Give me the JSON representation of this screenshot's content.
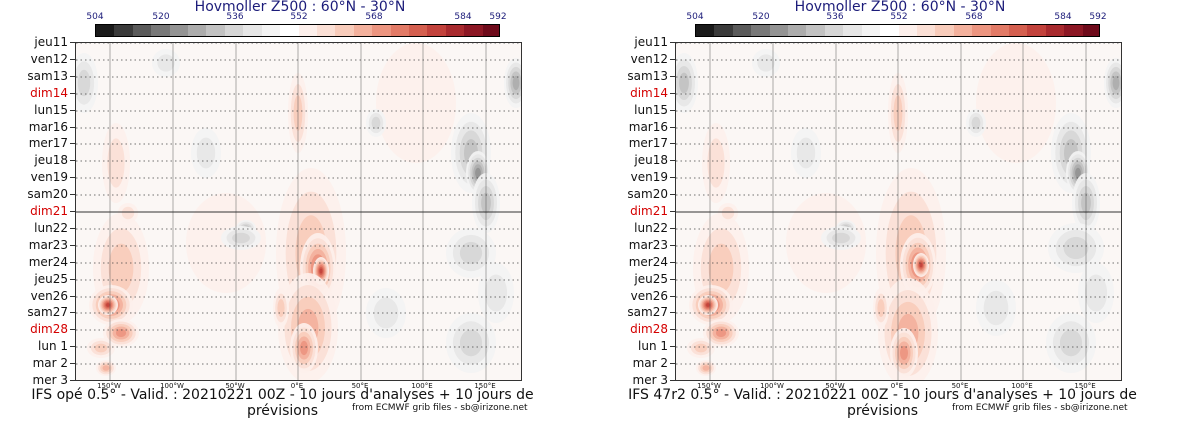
{
  "chart_data": [
    {
      "type": "heatmap",
      "title": "Hovmoller Z500 : 60°N - 30°N",
      "model": "IFS opé 0.5°",
      "footer": "IFS opé 0.5° - Valid. : 20210221 00Z - 10 jours d'analyses + 10 jours de prévisions",
      "credit": "from ECMWF grib files - sb@irizone.net",
      "colorbar_ticks": [
        "504",
        "520",
        "536",
        "552",
        "568",
        "584",
        "592"
      ],
      "x_ticks": [
        "150°W",
        "100°W",
        "50°W",
        "0°E",
        "50°E",
        "100°E",
        "150°E"
      ],
      "x_range": [
        -180,
        180
      ],
      "y_labels": [
        "jeu11",
        "ven12",
        "sam13",
        "dim14",
        "lun15",
        "mar16",
        "mer17",
        "jeu18",
        "ven19",
        "sam20",
        "dim21",
        "lun22",
        "mar23",
        "mer24",
        "jeu25",
        "ven26",
        "sam27",
        "dim28",
        "lun 1",
        "mar 2",
        "mer 3"
      ],
      "sunday_labels": [
        "dim14",
        "dim21",
        "dim28"
      ],
      "analysis_forecast_split": "dim21",
      "variant": 0
    },
    {
      "type": "heatmap",
      "title": "Hovmoller Z500 : 60°N - 30°N",
      "model": "IFS 47r2 0.5°",
      "footer": "IFS 47r2 0.5° - Valid. : 20210221 00Z - 10 jours d'analyses + 10 jours de prévisions",
      "credit": "from ECMWF grib files - sb@irizone.net",
      "colorbar_ticks": [
        "504",
        "520",
        "536",
        "552",
        "568",
        "584",
        "592"
      ],
      "x_ticks": [
        "150°W",
        "100°W",
        "50°W",
        "0°E",
        "50°E",
        "100°E",
        "150°E"
      ],
      "x_range": [
        -180,
        180
      ],
      "y_labels": [
        "jeu11",
        "ven12",
        "sam13",
        "dim14",
        "lun15",
        "mar16",
        "mer17",
        "jeu18",
        "ven19",
        "sam20",
        "dim21",
        "lun22",
        "mar23",
        "mer24",
        "jeu25",
        "ven26",
        "sam27",
        "dim28",
        "lun 1",
        "mar 2",
        "mer 3"
      ],
      "sunday_labels": [
        "dim14",
        "dim21",
        "dim28"
      ],
      "analysis_forecast_split": "dim21",
      "variant": 1
    }
  ],
  "palette": {
    "colorbar": [
      "#1a1a1a",
      "#3a3a3a",
      "#5a5a5a",
      "#787878",
      "#939393",
      "#acacac",
      "#c2c2c2",
      "#d6d6d6",
      "#e6e6e6",
      "#f3f3f3",
      "#ffffff",
      "#fdf0ec",
      "#fbe0d6",
      "#f8ccbb",
      "#f3b19d",
      "#ec9580",
      "#e27a66",
      "#d45f4f",
      "#c2423c",
      "#a82a2e",
      "#8c1724",
      "#6e0a1a"
    ],
    "sunday_color": "#d40000",
    "title_color": "#1c1c7a"
  }
}
